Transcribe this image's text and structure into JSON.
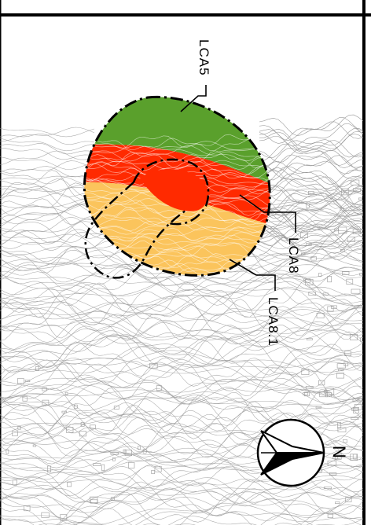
{
  "map": {
    "labels": [
      {
        "id": "lca5",
        "text": "LCA5"
      },
      {
        "id": "lca8",
        "text": "LCA8"
      },
      {
        "id": "lca8_1",
        "text": "LCA8.1"
      }
    ],
    "north_arrow": {
      "letter": "N",
      "icon": "north-arrow-icon"
    },
    "zones": [
      {
        "id": "lca5",
        "color": "#5aa02c"
      },
      {
        "id": "lca8",
        "color": "#ff2a00"
      },
      {
        "id": "lca8_1",
        "color": "#fbc45c"
      }
    ],
    "colors": {
      "contours": "#9a9a9a",
      "boundary": "#000000",
      "frame": "#000000"
    }
  }
}
